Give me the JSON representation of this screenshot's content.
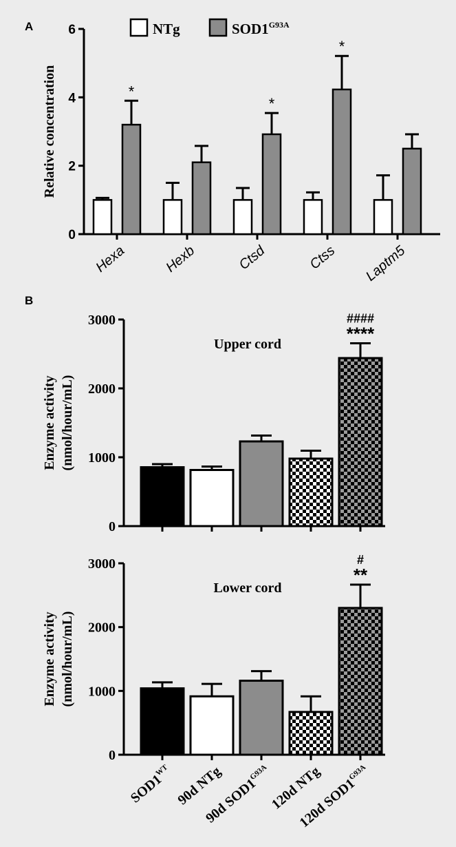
{
  "colors": {
    "background": "#ececec",
    "outline": "#000000",
    "white_bar": "#ffffff",
    "gray_bar": "#8c8c8c",
    "black_bar": "#000000",
    "check_light": "#ffffff",
    "check_dark": "#000000",
    "check_gray_light": "#9a9a9a"
  },
  "chart_data": [
    {
      "panel_label": "A",
      "type": "bar",
      "ylabel": "Relative concentration",
      "ylim": [
        0,
        6
      ],
      "yticks": [
        "0",
        "2",
        "4",
        "6"
      ],
      "legend": {
        "placement": "top",
        "entries": [
          {
            "label": "NTg",
            "fill": "white"
          },
          {
            "label": "SOD1",
            "sup": "G93A",
            "fill": "gray"
          }
        ]
      },
      "categories": [
        "Hexa",
        "Hexb",
        "Ctsd",
        "Ctss",
        "Laptm5"
      ],
      "series": [
        {
          "name": "NTg",
          "fill": "white",
          "values": [
            1.0,
            1.0,
            1.0,
            1.0,
            1.0
          ],
          "errors": [
            0.06,
            0.5,
            0.35,
            0.22,
            0.72
          ]
        },
        {
          "name": "SOD1G93A",
          "fill": "gray",
          "values": [
            3.2,
            2.1,
            2.92,
            4.23,
            2.5
          ],
          "errors": [
            0.7,
            0.48,
            0.62,
            0.98,
            0.42
          ]
        }
      ],
      "annotations": [
        "*",
        "",
        "*",
        "*",
        ""
      ]
    },
    {
      "panel_label": "B",
      "type": "bar",
      "title": "Upper cord",
      "ylabel_lines": [
        "Enzyme activity",
        "(nmol/hour/mL)"
      ],
      "ylim": [
        0,
        3000
      ],
      "yticks": [
        "0",
        "1000",
        "2000",
        "3000"
      ],
      "categories": [
        "SOD1WT",
        "90d NTg",
        "90d SOD1G93A",
        "120d NTg",
        "120d SOD1G93A"
      ],
      "fills": [
        "black",
        "white",
        "gray",
        "check",
        "check-gray"
      ],
      "values": [
        855,
        815,
        1230,
        980,
        2440
      ],
      "errors": [
        45,
        50,
        85,
        115,
        215
      ],
      "annotations": [
        {
          "top": "",
          "bottom": ""
        },
        {
          "top": "",
          "bottom": ""
        },
        {
          "top": "",
          "bottom": ""
        },
        {
          "top": "",
          "bottom": ""
        },
        {
          "top": "####",
          "bottom": "****"
        }
      ]
    },
    {
      "type": "bar",
      "title": "Lower cord",
      "ylabel_lines": [
        "Enzyme activity",
        "(nmol/hour/mL)"
      ],
      "ylim": [
        0,
        3000
      ],
      "yticks": [
        "0",
        "1000",
        "2000",
        "3000"
      ],
      "categories": [
        "SOD1WT",
        "90d NTg",
        "90d SOD1G93A",
        "120d NTg",
        "120d SOD1G93A"
      ],
      "fills": [
        "black",
        "white",
        "gray",
        "check",
        "check-gray"
      ],
      "values": [
        1040,
        915,
        1160,
        670,
        2300
      ],
      "errors": [
        95,
        195,
        150,
        245,
        365
      ],
      "annotations": [
        {
          "top": "",
          "bottom": ""
        },
        {
          "top": "",
          "bottom": ""
        },
        {
          "top": "",
          "bottom": ""
        },
        {
          "top": "",
          "bottom": ""
        },
        {
          "top": "#",
          "bottom": "**"
        }
      ]
    }
  ],
  "x_labels": [
    {
      "text": "SOD1",
      "sup": "WT"
    },
    {
      "text": "90d NTg",
      "sup": ""
    },
    {
      "text": "90d SOD1",
      "sup": "G93A"
    },
    {
      "text": "120d NTg",
      "sup": ""
    },
    {
      "text": "120d SOD1",
      "sup": "G93A"
    }
  ]
}
